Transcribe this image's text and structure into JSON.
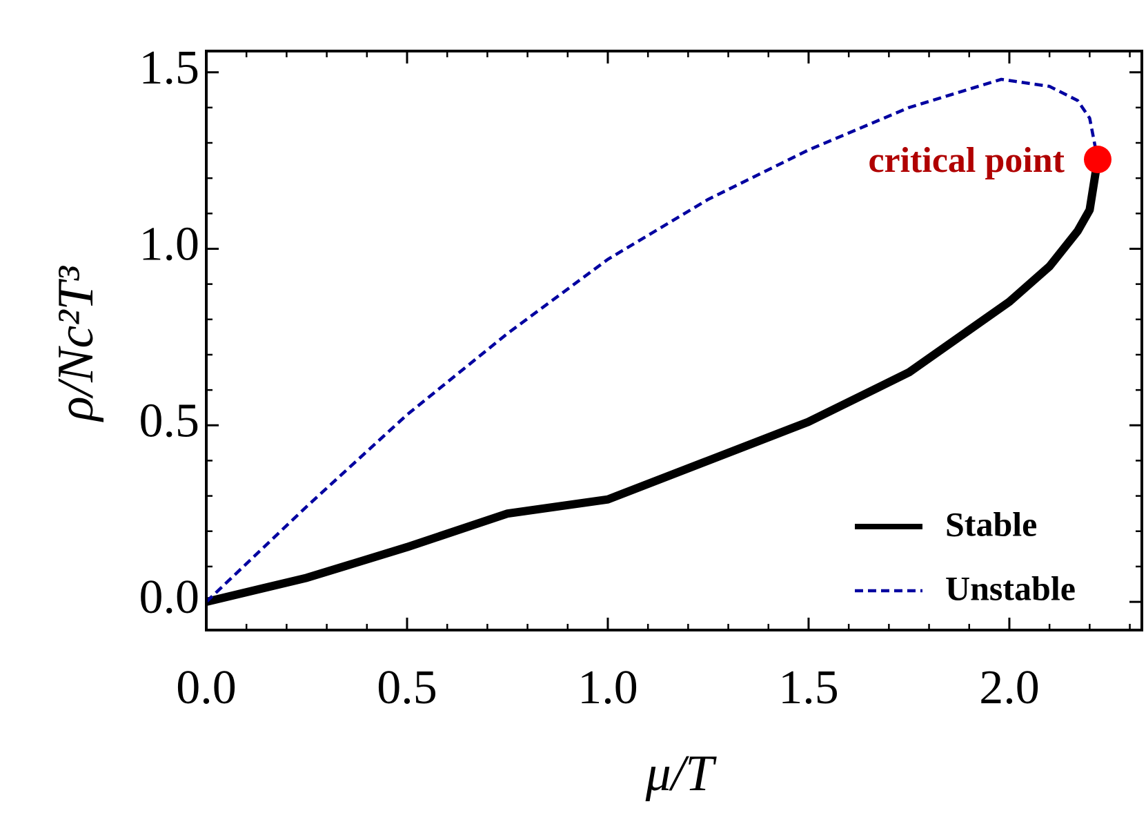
{
  "chart_data": {
    "type": "line",
    "xlabel": "μ/T",
    "ylabel": "ρ/Nc²T³",
    "xlim": [
      0,
      2.33
    ],
    "ylim": [
      -0.08,
      1.56
    ],
    "xticks": [
      {
        "value": 0,
        "label": "0.0"
      },
      0.5,
      {
        "value": 1,
        "label": "1.0"
      },
      1.5,
      {
        "value": 2,
        "label": "2.0"
      }
    ],
    "yticks": [
      {
        "value": 0,
        "label": "0.0"
      },
      0.5,
      {
        "value": 1,
        "label": "1.0"
      },
      1.5
    ],
    "x_minor_ticks": [
      0.1,
      0.2,
      0.3,
      0.4,
      0.6,
      0.7,
      0.8,
      0.9,
      1.1,
      1.2,
      1.3,
      1.4,
      1.6,
      1.7,
      1.8,
      1.9,
      2.1,
      2.2,
      2.3
    ],
    "y_minor_ticks": [
      0.1,
      0.2,
      0.3,
      0.4,
      0.6,
      0.7,
      0.8,
      0.9,
      1.1,
      1.2,
      1.3,
      1.4
    ],
    "legend": "lower right",
    "series": [
      {
        "name": "Stable",
        "color": "#000000",
        "x": [
          0,
          0.25,
          0.5,
          0.75,
          1.0,
          1.25,
          1.5,
          1.75,
          2.0,
          2.1,
          2.17,
          2.2,
          2.22
        ],
        "values": [
          0,
          0.068,
          0.155,
          0.25,
          0.29,
          0.4,
          0.51,
          0.65,
          0.85,
          0.95,
          1.05,
          1.11,
          1.253
        ]
      },
      {
        "name": "Unstable",
        "color": "#0000a0",
        "x": [
          0,
          0.25,
          0.5,
          0.75,
          1.0,
          1.25,
          1.5,
          1.75,
          1.98,
          2.1,
          2.17,
          2.2,
          2.22
        ],
        "values": [
          0,
          0.27,
          0.53,
          0.76,
          0.97,
          1.14,
          1.28,
          1.4,
          1.48,
          1.46,
          1.42,
          1.37,
          1.253
        ]
      }
    ],
    "critical_point": {
      "label": "critical point",
      "x": 2.22,
      "y": 1.253,
      "color": "#ff0000",
      "label_color": "#b00000"
    }
  }
}
